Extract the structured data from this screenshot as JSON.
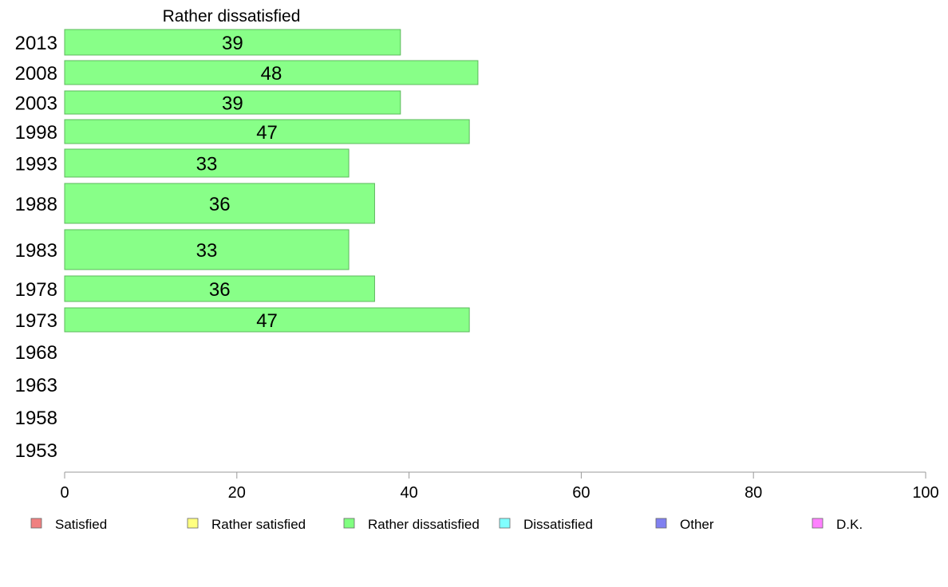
{
  "chart_data": {
    "type": "bar",
    "orientation": "horizontal",
    "title": "Rather dissatisfied",
    "categories": [
      "2013",
      "2008",
      "2003",
      "1998",
      "1993",
      "1988",
      "1983",
      "1978",
      "1973",
      "1968",
      "1963",
      "1958",
      "1953"
    ],
    "series": [
      {
        "name": "Rather dissatisfied",
        "values": [
          39,
          48,
          39,
          47,
          33,
          36,
          33,
          36,
          47,
          null,
          null,
          null,
          null
        ]
      }
    ],
    "xlim": [
      0,
      100
    ],
    "xticks": [
      0,
      20,
      40,
      60,
      80,
      100
    ],
    "grid": false,
    "legend_position": "bottom",
    "legend": [
      {
        "label": "Satisfied",
        "color": "#f08080"
      },
      {
        "label": "Rather satisfied",
        "color": "#ffff80"
      },
      {
        "label": "Rather dissatisfied",
        "color": "#80ff80"
      },
      {
        "label": "Dissatisfied",
        "color": "#80ffff"
      },
      {
        "label": "Other",
        "color": "#8080f0"
      },
      {
        "label": "D.K.",
        "color": "#ff80ff"
      }
    ],
    "bar_color": "#88ff88",
    "bar_edge_color": "#5cb85c"
  }
}
